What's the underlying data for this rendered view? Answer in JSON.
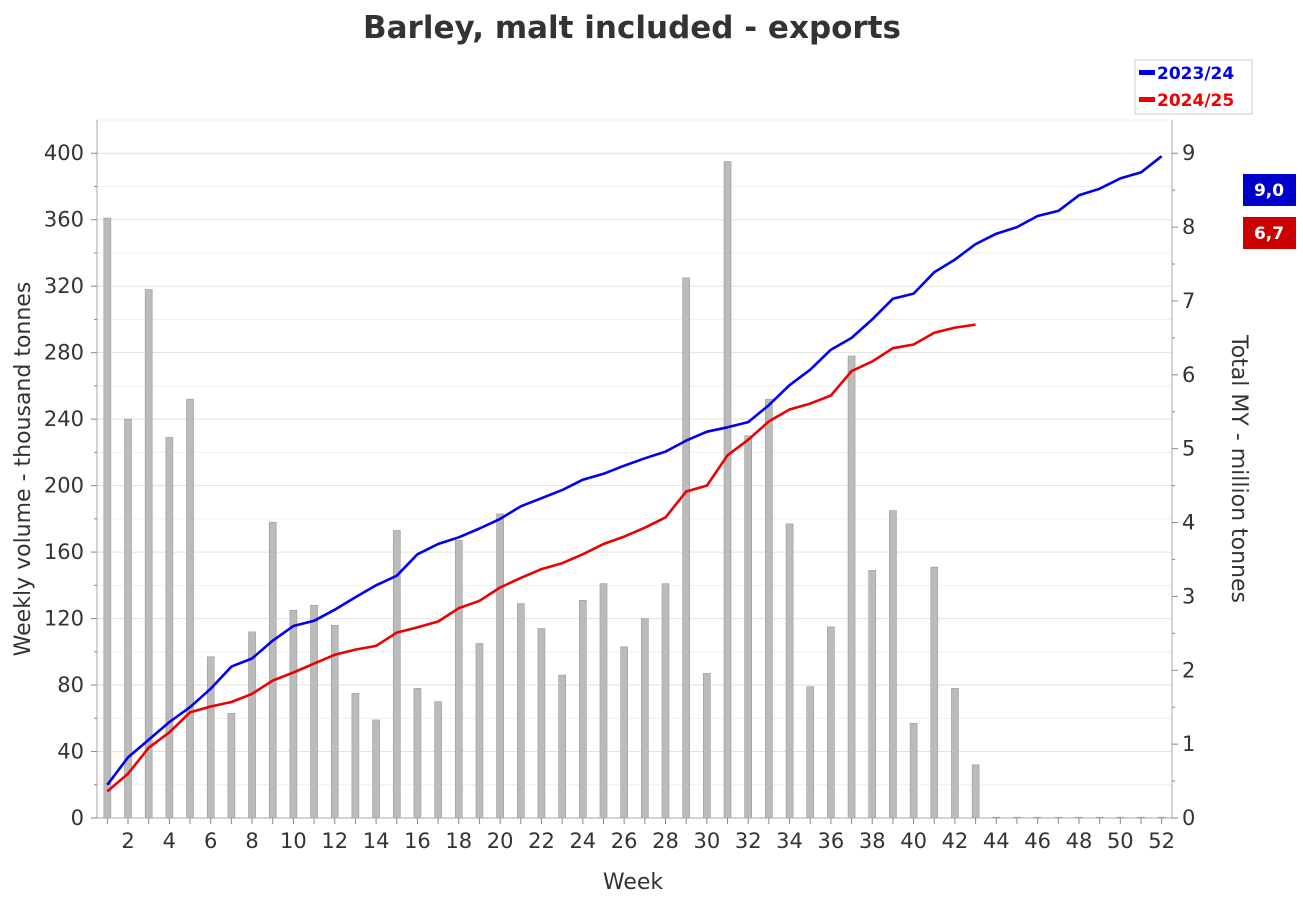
{
  "chart_data": {
    "type": "bar",
    "title": "Barley, malt included - exports",
    "xlabel": "Week",
    "ylabel": "Weekly volume - thousand tonnes",
    "y2label": "Total MY - million tonnes",
    "ylim": [
      0,
      420
    ],
    "y2lim": [
      0,
      9.45
    ],
    "yticks": [
      0,
      40,
      80,
      120,
      160,
      200,
      240,
      280,
      320,
      360,
      400
    ],
    "y2ticks": [
      0,
      1,
      2,
      3,
      4,
      5,
      6,
      7,
      8,
      9
    ],
    "grid": true,
    "legend_position": "top-right",
    "weeks": [
      1,
      2,
      3,
      4,
      5,
      6,
      7,
      8,
      9,
      10,
      11,
      12,
      13,
      14,
      15,
      16,
      17,
      18,
      19,
      20,
      21,
      22,
      23,
      24,
      25,
      26,
      27,
      28,
      29,
      30,
      31,
      32,
      33,
      34,
      35,
      36,
      37,
      38,
      39,
      40,
      41,
      42,
      43,
      44,
      45,
      46,
      47,
      48,
      49,
      50,
      51,
      52
    ],
    "xtick_labels": [
      "2",
      "4",
      "6",
      "8",
      "10",
      "12",
      "14",
      "16",
      "18",
      "20",
      "22",
      "24",
      "26",
      "28",
      "30",
      "32",
      "34",
      "36",
      "38",
      "40",
      "42",
      "44",
      "46",
      "48",
      "50",
      "52"
    ],
    "bars": {
      "name": "2024/25 weekly",
      "color": "#bbbbbb",
      "values": [
        361,
        240,
        318,
        229,
        252,
        97,
        63,
        112,
        178,
        125,
        128,
        116,
        75,
        59,
        173,
        78,
        70,
        167,
        105,
        183,
        129,
        114,
        86,
        131,
        141,
        103,
        120,
        141,
        325,
        87,
        395,
        230,
        252,
        177,
        79,
        115,
        278,
        149,
        185,
        57,
        151,
        78,
        32,
        0,
        0,
        0,
        0,
        0,
        0,
        0,
        0,
        0
      ]
    },
    "series": [
      {
        "name": "2023/24",
        "color": "#0000ee",
        "values": [
          0.45,
          0.82,
          1.06,
          1.3,
          1.5,
          1.75,
          2.05,
          2.16,
          2.4,
          2.6,
          2.67,
          2.82,
          2.99,
          3.15,
          3.28,
          3.57,
          3.71,
          3.8,
          3.92,
          4.05,
          4.22,
          4.33,
          4.44,
          4.58,
          4.66,
          4.77,
          4.87,
          4.96,
          5.11,
          5.23,
          5.29,
          5.36,
          5.59,
          5.86,
          6.07,
          6.34,
          6.5,
          6.75,
          7.03,
          7.1,
          7.39,
          7.56,
          7.77,
          7.91,
          8.0,
          8.15,
          8.22,
          8.43,
          8.52,
          8.66,
          8.74,
          8.96
        ]
      },
      {
        "name": "2024/25",
        "color": "#ee0000",
        "values": [
          0.36,
          0.6,
          0.95,
          1.16,
          1.43,
          1.51,
          1.57,
          1.68,
          1.86,
          1.97,
          2.09,
          2.21,
          2.28,
          2.33,
          2.51,
          2.58,
          2.66,
          2.84,
          2.94,
          3.12,
          3.25,
          3.37,
          3.45,
          3.57,
          3.71,
          3.81,
          3.93,
          4.07,
          4.42,
          4.5,
          4.91,
          5.12,
          5.37,
          5.53,
          5.61,
          5.72,
          6.05,
          6.18,
          6.36,
          6.41,
          6.57,
          6.64,
          6.68
        ]
      }
    ],
    "value_badges": [
      {
        "series": "2023/24",
        "text": "9,0",
        "color": "#0000cc"
      },
      {
        "series": "2024/25",
        "text": "6,7",
        "color": "#cc0000"
      }
    ]
  }
}
